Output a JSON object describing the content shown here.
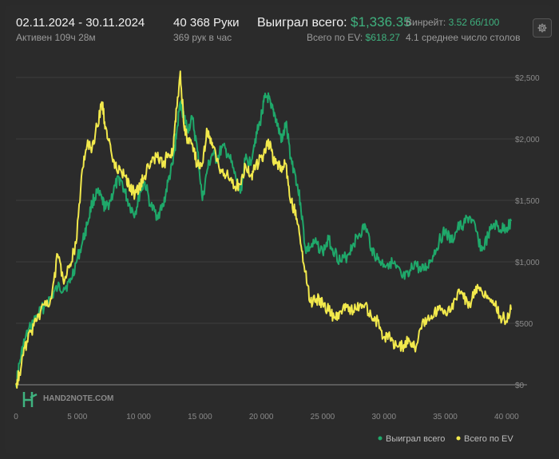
{
  "header": {
    "date_range": "02.11.2024 - 30.11.2024",
    "active_time": "Активен 109ч 28м",
    "hands": "40 368 Руки",
    "hands_per_hour": "369 рук в час",
    "won_label": "Выиграл всего:",
    "won_value": "$1,336.35",
    "ev_label": "Всего по EV:",
    "ev_value": "$618.27",
    "winrate_label": "Винрейт:",
    "winrate_value": "3.52 бб/100",
    "avg_tables": "4.1 среднее число столов"
  },
  "watermark": "HAND2NOTE.COM",
  "icons": {
    "settings": "gear-icon",
    "logo": "hand2note-logo-icon"
  },
  "colors": {
    "won": "#1fa86a",
    "ev": "#f2e94c",
    "grid": "#3d3d3d",
    "axis_text": "#8a8a8a"
  },
  "chart_data": {
    "type": "line",
    "xlim": [
      0,
      40368
    ],
    "ylim": [
      0,
      2500
    ],
    "x_ticks": [
      0,
      5000,
      10000,
      15000,
      20000,
      25000,
      30000,
      35000,
      40000
    ],
    "x_tick_labels": [
      "0",
      "5 000",
      "10 000",
      "15 000",
      "20 000",
      "25 000",
      "30 000",
      "35 000",
      "40 000"
    ],
    "y_ticks": [
      0,
      500,
      1000,
      1500,
      2000,
      2500
    ],
    "y_tick_labels": [
      "$0",
      "$500",
      "$1,000",
      "$1,500",
      "$2,000",
      "$2,500"
    ],
    "grid": "horizontal",
    "legend_position": "bottom-right",
    "series": [
      {
        "name": "Выиграл всего",
        "color": "#1fa86a",
        "x": [
          0,
          300,
          700,
          1200,
          1700,
          2300,
          2900,
          3400,
          3900,
          4400,
          4900,
          5400,
          5800,
          6200,
          6600,
          7000,
          7300,
          7700,
          8100,
          8500,
          8900,
          9300,
          9700,
          10100,
          10500,
          11000,
          11500,
          12000,
          12400,
          12800,
          13100,
          13400,
          13700,
          14000,
          14400,
          14800,
          15200,
          15600,
          16000,
          16400,
          16800,
          17300,
          17800,
          18300,
          18700,
          19100,
          19500,
          19900,
          20200,
          20500,
          20800,
          21100,
          21400,
          21700,
          22000,
          22400,
          22800,
          23200,
          23600,
          24000,
          24500,
          25000,
          25500,
          26000,
          26500,
          27000,
          27500,
          28000,
          28500,
          29000,
          29500,
          30000,
          30500,
          31000,
          31500,
          32000,
          32500,
          33000,
          33500,
          34000,
          34500,
          35000,
          35500,
          36000,
          36500,
          37000,
          37500,
          38000,
          38500,
          39000,
          39500,
          40000,
          40368
        ],
        "y": [
          0,
          180,
          360,
          470,
          560,
          640,
          720,
          790,
          790,
          830,
          990,
          1150,
          1300,
          1480,
          1560,
          1510,
          1430,
          1500,
          1620,
          1680,
          1560,
          1450,
          1390,
          1560,
          1650,
          1450,
          1380,
          1450,
          1650,
          1800,
          2050,
          2300,
          2180,
          2080,
          2160,
          1900,
          1500,
          1750,
          1880,
          1830,
          1930,
          1880,
          1720,
          1560,
          1830,
          1810,
          2000,
          2130,
          2300,
          2350,
          2250,
          2200,
          2080,
          1980,
          2130,
          1850,
          1700,
          1480,
          1100,
          1120,
          1150,
          1080,
          1180,
          1080,
          1000,
          1050,
          1150,
          1230,
          1290,
          1110,
          1020,
          980,
          1000,
          950,
          870,
          880,
          1000,
          920,
          960,
          1050,
          1170,
          1250,
          1160,
          1270,
          1310,
          1370,
          1250,
          1090,
          1210,
          1310,
          1260,
          1280,
          1330
        ]
      },
      {
        "name": "Всего по EV",
        "color": "#f2e94c",
        "x": [
          0,
          300,
          700,
          1200,
          1700,
          2300,
          2900,
          3400,
          3900,
          4400,
          4900,
          5400,
          5800,
          6200,
          6600,
          7000,
          7300,
          7700,
          8100,
          8500,
          8900,
          9300,
          9700,
          10100,
          10500,
          11000,
          11500,
          12000,
          12400,
          12800,
          13100,
          13400,
          13700,
          14000,
          14400,
          14800,
          15200,
          15600,
          16000,
          16400,
          16800,
          17300,
          17800,
          18300,
          18700,
          19100,
          19500,
          19900,
          20200,
          20500,
          20800,
          21100,
          21400,
          21700,
          22000,
          22400,
          22800,
          23200,
          23600,
          24000,
          24500,
          25000,
          25500,
          26000,
          26500,
          27000,
          27500,
          28000,
          28500,
          29000,
          29500,
          30000,
          30500,
          31000,
          31500,
          32000,
          32500,
          33000,
          33500,
          34000,
          34500,
          35000,
          35500,
          36000,
          36500,
          37000,
          37500,
          38000,
          38500,
          39000,
          39500,
          40000,
          40368
        ],
        "y": [
          0,
          100,
          300,
          430,
          520,
          650,
          700,
          1060,
          820,
          980,
          1150,
          1750,
          1950,
          1920,
          2100,
          2300,
          2100,
          1950,
          1780,
          1750,
          1700,
          1620,
          1550,
          1620,
          1700,
          1820,
          1850,
          1780,
          1880,
          1900,
          2250,
          2550,
          2100,
          1980,
          1950,
          1780,
          1800,
          2070,
          1970,
          1820,
          1730,
          1690,
          1610,
          1630,
          1790,
          1700,
          1750,
          1860,
          1870,
          1970,
          1920,
          1800,
          1780,
          1750,
          1800,
          1480,
          1420,
          1150,
          920,
          670,
          700,
          660,
          600,
          550,
          600,
          650,
          600,
          640,
          660,
          540,
          520,
          390,
          380,
          320,
          310,
          380,
          300,
          460,
          520,
          550,
          640,
          600,
          620,
          750,
          700,
          650,
          800,
          760,
          700,
          660,
          560,
          520,
          610
        ]
      }
    ]
  }
}
